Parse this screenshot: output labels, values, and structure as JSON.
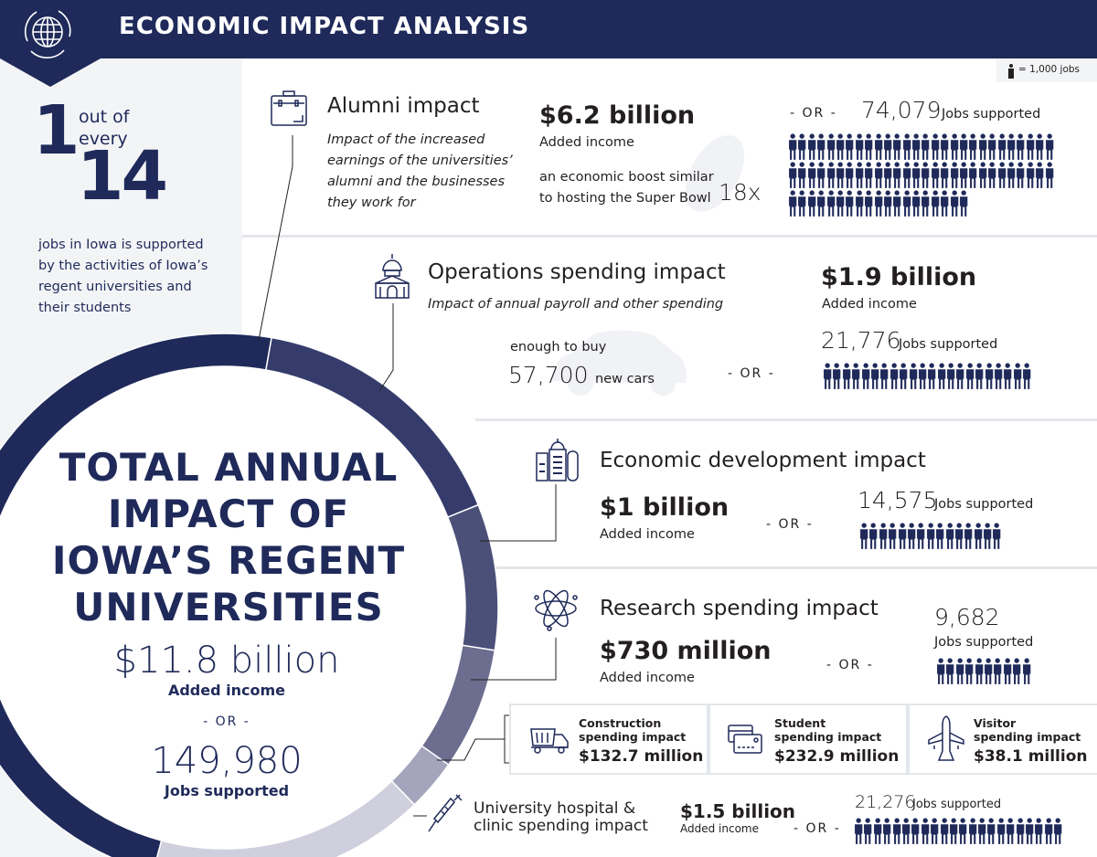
{
  "header": {
    "title": "ECONOMIC IMPACT ANALYSIS",
    "icon": "globe-cycle-icon"
  },
  "legend": {
    "label": "= 1,000 jobs",
    "icon": "person-icon"
  },
  "stat": {
    "one": "1",
    "out_of": "out of",
    "every": "every",
    "fourteen": "14",
    "text_lines": [
      "jobs in Iowa is supported",
      "by the activities of Iowa’s",
      "regent universities and",
      "their students"
    ]
  },
  "total": {
    "title_lines": [
      "TOTAL ANNUAL",
      "IMPACT OF",
      "IOWA’S REGENT",
      "UNIVERSITIES"
    ],
    "income": "$11.8 billion",
    "income_label": "Added income",
    "or": "- OR -",
    "jobs": "149,980",
    "jobs_label": "Jobs supported"
  },
  "colors": {
    "navy": "#1f2a5a",
    "ops": "#353c6c",
    "econ": "#4b5079",
    "research": "#6c6d8f",
    "other": "#a4a4bd",
    "hospital": "#cfcfde"
  },
  "alumni": {
    "title": "Alumni impact",
    "desc_lines": [
      "Impact of the increased",
      "earnings of the universities’",
      "alumni and the businesses",
      "they work for"
    ],
    "income": "$6.2 billion",
    "income_label": "Added income",
    "compare_lines": [
      "an economic boost similar",
      "to hosting the Super Bowl"
    ],
    "compare_value": "18x",
    "or": "- OR -",
    "jobs": "74,079",
    "jobs_count": 74079,
    "jobs_label": "Jobs supported",
    "icon": "briefcase-icon"
  },
  "operations": {
    "title": "Operations spending impact",
    "desc": "Impact of annual payroll and other spending",
    "income": "$1.9 billion",
    "income_label": "Added income",
    "compare_intro": "enough to buy",
    "compare_value": "57,700",
    "compare_unit": "new cars",
    "or": "- OR -",
    "jobs": "21,776",
    "jobs_count": 21776,
    "jobs_label": "Jobs supported",
    "icon": "capitol-building-icon"
  },
  "econdev": {
    "title": "Economic development impact",
    "income": "$1 billion",
    "income_label": "Added income",
    "or": "- OR -",
    "jobs": "14,575",
    "jobs_count": 14575,
    "jobs_label": "Jobs supported",
    "icon": "city-buildings-icon"
  },
  "research": {
    "title": "Research spending impact",
    "income": "$730 million",
    "income_label": "Added income",
    "or": "- OR -",
    "jobs": "9,682",
    "jobs_count": 9682,
    "jobs_label": "Jobs supported",
    "icon": "atom-icon"
  },
  "small_impacts": [
    {
      "title_lines": [
        "Construction",
        "spending impact"
      ],
      "value": "$132.7 million",
      "icon": "dump-truck-icon"
    },
    {
      "title_lines": [
        "Student",
        "spending impact"
      ],
      "value": "$232.9 million",
      "icon": "credit-card-icon"
    },
    {
      "title_lines": [
        "Visitor",
        "spending impact"
      ],
      "value": "$38.1 million",
      "icon": "airplane-icon"
    }
  ],
  "hospital": {
    "title_lines": [
      "University hospital &",
      "clinic spending impact"
    ],
    "income": "$1.5 billion",
    "income_label": "Added income",
    "or": "- OR -",
    "jobs": "21,276",
    "jobs_count": 21276,
    "jobs_label": "Jobs supported",
    "icon": "syringe-icon"
  }
}
